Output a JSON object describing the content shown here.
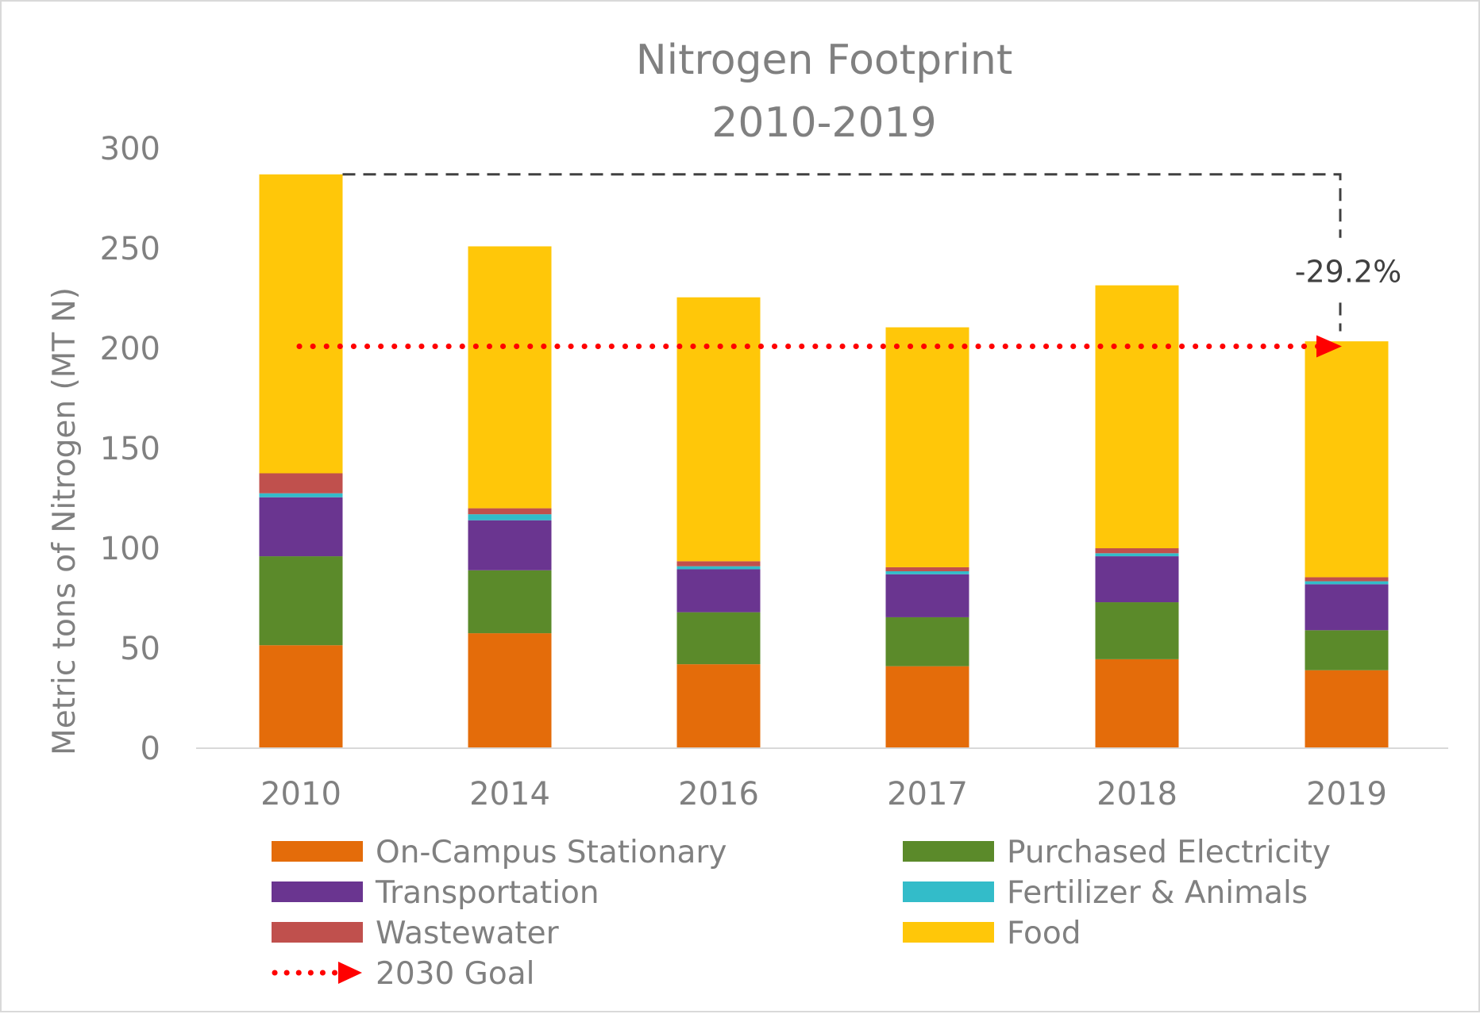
{
  "chart_data": {
    "type": "bar",
    "stacked": true,
    "title": "Nitrogen Footprint",
    "subtitle": "2010-2019",
    "ylabel": "Metric tons of Nitrogen (MT N)",
    "xlabel": "",
    "ylim": [
      0,
      300
    ],
    "yticks": [
      0,
      50,
      100,
      150,
      200,
      250,
      300
    ],
    "grid": false,
    "legend_position": "bottom",
    "categories": [
      "2010",
      "2014",
      "2016",
      "2017",
      "2018",
      "2019"
    ],
    "series": [
      {
        "name": "On-Campus Stationary",
        "color": "#E46C0A",
        "values": [
          51.5,
          57.5,
          42,
          41,
          44.5,
          39
        ]
      },
      {
        "name": "Purchased Electricity",
        "color": "#5B8A2A",
        "values": [
          44.5,
          31.5,
          26,
          24.5,
          28.5,
          20
        ]
      },
      {
        "name": "Transportation",
        "color": "#6A3590",
        "values": [
          29.5,
          25,
          21.5,
          21.5,
          23,
          23
        ]
      },
      {
        "name": "Fertilizer & Animals",
        "color": "#33BCC9",
        "values": [
          2,
          3,
          1.5,
          1.5,
          1.5,
          1.5
        ]
      },
      {
        "name": "Wastewater",
        "color": "#C0504D",
        "values": [
          10,
          3,
          2.5,
          2,
          2.5,
          2
        ]
      },
      {
        "name": "Food",
        "color": "#FFC709",
        "values": [
          149.5,
          131,
          132,
          120,
          131.5,
          118
        ]
      }
    ],
    "goal": {
      "name": "2030 Goal",
      "value": 201,
      "color": "#FF0000",
      "from": "2010",
      "to": "2019"
    },
    "annotation": {
      "text": "-29.2%",
      "from_value": 287,
      "to_value": 203
    },
    "legend_entries": [
      {
        "label": "On-Campus Stationary",
        "color": "#E46C0A",
        "kind": "box"
      },
      {
        "label": "Purchased Electricity",
        "color": "#5B8A2A",
        "kind": "box"
      },
      {
        "label": "Transportation",
        "color": "#6A3590",
        "kind": "box"
      },
      {
        "label": "Fertilizer & Animals",
        "color": "#33BCC9",
        "kind": "box"
      },
      {
        "label": "Wastewater",
        "color": "#C0504D",
        "kind": "box"
      },
      {
        "label": "Food",
        "color": "#FFC709",
        "kind": "box"
      },
      {
        "label": "2030 Goal",
        "color": "#FF0000",
        "kind": "dotted-arrow"
      }
    ]
  }
}
